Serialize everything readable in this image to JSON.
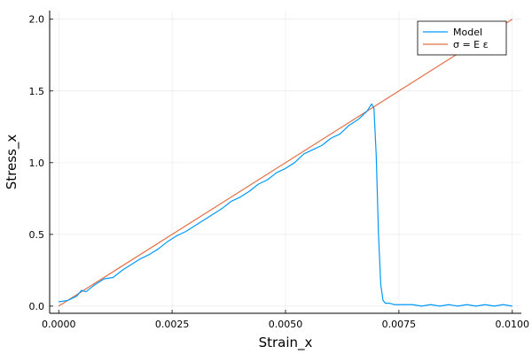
{
  "chart_data": {
    "type": "line",
    "xlabel": "Strain_x",
    "ylabel": "Stress_x",
    "xlim": [
      -0.0002,
      0.0102
    ],
    "ylim": [
      -0.05,
      2.06
    ],
    "x_ticks": [
      0.0,
      0.0025,
      0.005,
      0.0075,
      0.01
    ],
    "x_tick_labels": [
      "0.0000",
      "0.0025",
      "0.0050",
      "0.0075",
      "0.0100"
    ],
    "y_ticks": [
      0.0,
      0.5,
      1.0,
      1.5,
      2.0
    ],
    "y_tick_labels": [
      "0.0",
      "0.5",
      "1.0",
      "1.5",
      "2.0"
    ],
    "grid": true,
    "legend_position": "top-right",
    "series": [
      {
        "name": "Model",
        "color": "#009AFA",
        "x": [
          0.0,
          0.0002,
          0.0004,
          0.0005,
          0.0006,
          0.0008,
          0.001,
          0.0012,
          0.0014,
          0.0016,
          0.0018,
          0.002,
          0.0022,
          0.0024,
          0.0026,
          0.0028,
          0.003,
          0.0032,
          0.0034,
          0.0036,
          0.0038,
          0.004,
          0.0042,
          0.0044,
          0.0046,
          0.0048,
          0.005,
          0.0052,
          0.0054,
          0.0056,
          0.0058,
          0.006,
          0.0062,
          0.0064,
          0.0066,
          0.0068,
          0.0069,
          0.00695,
          0.007,
          0.00705,
          0.0071,
          0.00715,
          0.0072,
          0.0073,
          0.0074,
          0.0076,
          0.0078,
          0.008,
          0.0082,
          0.0084,
          0.0086,
          0.0088,
          0.009,
          0.0092,
          0.0094,
          0.0096,
          0.0098,
          0.01
        ],
        "y": [
          0.03,
          0.04,
          0.07,
          0.11,
          0.1,
          0.15,
          0.19,
          0.2,
          0.25,
          0.29,
          0.33,
          0.36,
          0.4,
          0.45,
          0.49,
          0.52,
          0.56,
          0.6,
          0.64,
          0.68,
          0.73,
          0.76,
          0.8,
          0.85,
          0.88,
          0.93,
          0.96,
          1.0,
          1.06,
          1.09,
          1.12,
          1.17,
          1.2,
          1.26,
          1.3,
          1.36,
          1.41,
          1.38,
          1.05,
          0.5,
          0.15,
          0.04,
          0.02,
          0.02,
          0.01,
          0.01,
          0.01,
          0.0,
          0.01,
          0.0,
          0.01,
          0.0,
          0.01,
          0.0,
          0.01,
          0.0,
          0.01,
          0.0
        ]
      },
      {
        "name": "σ = E ε",
        "color": "#E26F46",
        "x": [
          0.0,
          0.01
        ],
        "y": [
          0.0,
          2.0
        ]
      }
    ]
  }
}
